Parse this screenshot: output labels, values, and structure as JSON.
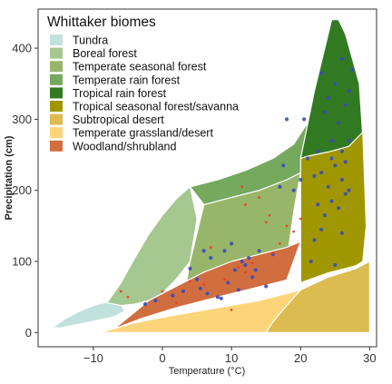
{
  "chart_data": {
    "type": "scatter",
    "title": "",
    "xlabel": "Temperature (°C)",
    "ylabel": "Precipitation (cm)",
    "xlim": [
      -18,
      31
    ],
    "ylim": [
      -20,
      455
    ],
    "xticks": [
      -10,
      0,
      10,
      20,
      30
    ],
    "xtick_labels": [
      "−10",
      "0",
      "10",
      "20",
      "30"
    ],
    "yticks": [
      0,
      100,
      200,
      300,
      400
    ],
    "ytick_labels": [
      "0",
      "100",
      "200",
      "300",
      "400"
    ],
    "grid": false,
    "legend": {
      "title": "Whittaker biomes",
      "placement": "top-left",
      "entries": [
        {
          "label": "Tundra",
          "color": "#C1E1DD"
        },
        {
          "label": "Boreal forest",
          "color": "#A5C790"
        },
        {
          "label": "Temperate seasonal forest",
          "color": "#97B669"
        },
        {
          "label": "Temperate rain forest",
          "color": "#75A95E"
        },
        {
          "label": "Tropical rain forest",
          "color": "#317A22"
        },
        {
          "label": "Tropical seasonal forest/savanna",
          "color": "#A09700"
        },
        {
          "label": "Subtropical desert",
          "color": "#DCBB50"
        },
        {
          "label": "Temperate grassland/desert",
          "color": "#FCD57A"
        },
        {
          "label": "Woodland/shrubland",
          "color": "#D16E3F"
        }
      ]
    },
    "biomes": [
      {
        "name": "Tundra",
        "color": "#C1E1DD",
        "x": [
          -15.5,
          -14,
          -12,
          -10,
          -8,
          -6,
          -5.5,
          -7,
          -9,
          -11,
          -13,
          -15,
          -16,
          -15.5
        ],
        "y": [
          10,
          20,
          30,
          38,
          43,
          40,
          30,
          22,
          18,
          14,
          10,
          6,
          8,
          10
        ]
      },
      {
        "name": "Boreal forest",
        "color": "#A5C790",
        "x": [
          -8,
          -6,
          -4,
          -2,
          0,
          2,
          4,
          5,
          4,
          2,
          0,
          -2,
          -4,
          -6,
          -8
        ],
        "y": [
          42,
          70,
          105,
          138,
          165,
          188,
          205,
          160,
          100,
          75,
          55,
          45,
          40,
          38,
          42
        ]
      },
      {
        "name": "Temperate seasonal forest",
        "color": "#97B669",
        "x": [
          3,
          4,
          6,
          10,
          14,
          18,
          20,
          19,
          18,
          16,
          12,
          8,
          4,
          3
        ],
        "y": [
          45,
          100,
          180,
          190,
          200,
          215,
          225,
          170,
          100,
          85,
          72,
          58,
          48,
          45
        ]
      },
      {
        "name": "Temperate rain forest",
        "color": "#75A95E",
        "x": [
          4,
          8,
          12,
          16,
          19,
          21,
          20,
          18,
          14,
          10,
          6,
          4
        ],
        "y": [
          205,
          215,
          228,
          245,
          265,
          295,
          225,
          215,
          200,
          190,
          180,
          205
        ]
      },
      {
        "name": "Tropical rain forest",
        "color": "#317A22",
        "x": [
          20,
          22,
          23.5,
          24.5,
          25.5,
          26.5,
          27.5,
          28.5,
          29,
          27,
          24,
          21,
          20
        ],
        "y": [
          245,
          340,
          400,
          440,
          440,
          420,
          385,
          350,
          275,
          255,
          248,
          245,
          245
        ]
      },
      {
        "name": "Tropical seasonal forest/savanna",
        "color": "#A09700",
        "x": [
          20,
          21,
          24,
          27,
          29,
          29.5,
          29,
          28,
          24,
          20,
          20
        ],
        "y": [
          245,
          248,
          254,
          262,
          282,
          150,
          100,
          94,
          84,
          70,
          245
        ]
      },
      {
        "name": "Subtropical desert",
        "color": "#DCBB50",
        "x": [
          15,
          17,
          20,
          24,
          28,
          30,
          30,
          15
        ],
        "y": [
          0,
          35,
          60,
          78,
          90,
          100,
          0,
          0
        ]
      },
      {
        "name": "Temperate grassland/desert",
        "color": "#FCD57A",
        "x": [
          -9,
          -4,
          2,
          8,
          14,
          18,
          20,
          18,
          16,
          15,
          -9
        ],
        "y": [
          0,
          14,
          25,
          35,
          45,
          55,
          60,
          38,
          15,
          0,
          0
        ]
      },
      {
        "name": "Woodland/shrubland",
        "color": "#D16E3F",
        "x": [
          -7,
          -3,
          2,
          8,
          13,
          18,
          20,
          18,
          14,
          10,
          6,
          3,
          -2,
          -7
        ],
        "y": [
          5,
          20,
          35,
          50,
          62,
          74,
          128,
          120,
          110,
          100,
          85,
          70,
          45,
          5
        ]
      }
    ],
    "series": [
      {
        "color": "#3B4BB8",
        "points": [
          [
            -2.5,
            40
          ],
          [
            -1,
            45
          ],
          [
            1.5,
            52
          ],
          [
            3,
            58
          ],
          [
            4,
            90
          ],
          [
            5,
            75
          ],
          [
            5.5,
            62
          ],
          [
            6,
            115
          ],
          [
            6.5,
            55
          ],
          [
            7,
            105
          ],
          [
            8,
            50
          ],
          [
            8.5,
            48
          ],
          [
            9,
            115
          ],
          [
            9.5,
            70
          ],
          [
            10,
            125
          ],
          [
            10.5,
            88
          ],
          [
            11,
            60
          ],
          [
            11.5,
            100
          ],
          [
            12,
            95
          ],
          [
            12.5,
            105
          ],
          [
            13,
            78
          ],
          [
            13.5,
            88
          ],
          [
            14,
            115
          ],
          [
            15,
            65
          ],
          [
            16,
            110
          ],
          [
            17,
            205
          ],
          [
            17.5,
            235
          ],
          [
            18,
            300
          ],
          [
            19,
            200
          ],
          [
            20,
            215
          ],
          [
            21,
            245
          ],
          [
            21.5,
            100
          ],
          [
            22,
            130
          ],
          [
            22.5,
            180
          ],
          [
            22.5,
            255
          ],
          [
            23,
            145
          ],
          [
            23,
            225
          ],
          [
            23.5,
            165
          ],
          [
            23.5,
            310
          ],
          [
            24,
            205
          ],
          [
            24,
            330
          ],
          [
            24.5,
            185
          ],
          [
            24.5,
            270
          ],
          [
            25,
            95
          ],
          [
            25,
            235
          ],
          [
            25,
            350
          ],
          [
            25.5,
            175
          ],
          [
            25.5,
            295
          ],
          [
            26,
            140
          ],
          [
            26,
            215
          ],
          [
            26,
            255
          ],
          [
            26.5,
            195
          ],
          [
            26.5,
            240
          ],
          [
            26.5,
            320
          ],
          [
            27,
            200
          ],
          [
            27,
            340
          ],
          [
            27.5,
            370
          ],
          [
            27,
            270
          ],
          [
            26,
            385
          ],
          [
            22,
            220
          ],
          [
            20.5,
            300
          ],
          [
            24.5,
            245
          ],
          [
            23,
            365
          ]
        ]
      },
      {
        "color": "#F03B20",
        "points": [
          [
            -6,
            58
          ],
          [
            -5,
            50
          ],
          [
            0,
            58
          ],
          [
            2,
            42
          ],
          [
            4,
            72
          ],
          [
            6,
            68
          ],
          [
            7,
            120
          ],
          [
            9,
            75
          ],
          [
            10,
            32
          ],
          [
            11,
            92
          ],
          [
            12,
            85
          ],
          [
            13,
            98
          ],
          [
            14,
            190
          ],
          [
            15,
            155
          ],
          [
            16,
            112
          ],
          [
            12,
            180
          ],
          [
            17,
            125
          ],
          [
            18,
            150
          ],
          [
            19,
            142
          ],
          [
            20,
            160
          ],
          [
            11.5,
            205
          ],
          [
            15.5,
            165
          ]
        ]
      }
    ]
  }
}
